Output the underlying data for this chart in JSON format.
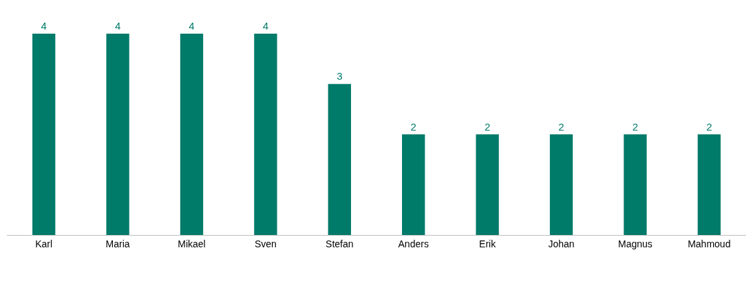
{
  "chart_data": {
    "type": "bar",
    "categories": [
      "Karl",
      "Maria",
      "Mikael",
      "Sven",
      "Stefan",
      "Anders",
      "Erik",
      "Johan",
      "Magnus",
      "Mahmoud"
    ],
    "values": [
      4,
      4,
      4,
      4,
      3,
      2,
      2,
      2,
      2,
      2
    ],
    "color": "#007a69",
    "data_labels": true,
    "legend": false,
    "tick_labels": "x"
  }
}
